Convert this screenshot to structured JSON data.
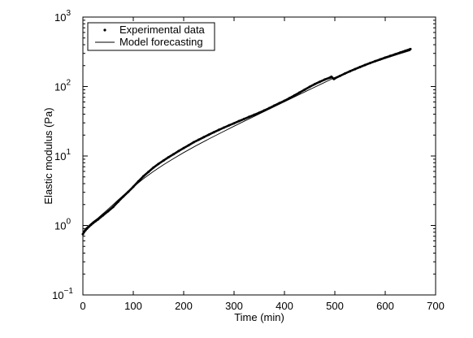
{
  "chart_data": {
    "type": "line",
    "title": "",
    "xlabel": "Time (min)",
    "ylabel": "Elastic modulus (Pa)",
    "xlim": [
      0,
      700
    ],
    "ylim": [
      0.1,
      1000
    ],
    "y_scale": "log",
    "grid": false,
    "legend_position": "top-left",
    "x_ticks": [
      0,
      100,
      200,
      300,
      400,
      500,
      600,
      700
    ],
    "x_tick_labels": [
      "0",
      "100",
      "200",
      "300",
      "400",
      "500",
      "600",
      "700"
    ],
    "y_ticks": [
      0.1,
      1,
      10,
      100,
      1000
    ],
    "y_tick_labels": [
      {
        "base": "10",
        "exp": "−1"
      },
      {
        "base": "10",
        "exp": "0"
      },
      {
        "base": "10",
        "exp": "1"
      },
      {
        "base": "10",
        "exp": "2"
      },
      {
        "base": "10",
        "exp": "3"
      }
    ],
    "series": [
      {
        "name": "Experimental data",
        "style": "dots",
        "color": "#000000",
        "x": [
          0,
          2,
          5,
          8,
          12,
          16,
          20,
          25,
          30,
          40,
          50,
          60,
          70,
          80,
          90,
          100,
          110,
          120,
          130,
          140,
          150,
          160,
          170,
          180,
          190,
          200,
          210,
          220,
          230,
          240,
          250,
          260,
          270,
          280,
          290,
          300,
          310,
          320,
          330,
          340,
          350,
          360,
          370,
          380,
          390,
          400,
          410,
          420,
          430,
          440,
          450,
          460,
          470,
          480,
          490,
          493,
          495,
          498,
          500,
          510,
          520,
          530,
          540,
          550,
          560,
          570,
          580,
          590,
          600,
          610,
          620,
          630,
          640,
          650
        ],
        "y": [
          0.75,
          0.8,
          0.85,
          0.9,
          0.96,
          1.02,
          1.08,
          1.15,
          1.22,
          1.4,
          1.6,
          1.85,
          2.2,
          2.6,
          3.05,
          3.6,
          4.3,
          5.1,
          5.9,
          6.8,
          7.7,
          8.6,
          9.6,
          10.6,
          11.8,
          13.0,
          14.3,
          15.8,
          17.2,
          18.7,
          20.3,
          22.0,
          23.8,
          25.7,
          27.6,
          29.6,
          31.8,
          34.1,
          36.6,
          39.2,
          42.0,
          45.3,
          49.0,
          53.2,
          57.8,
          62.5,
          68.0,
          74.5,
          82.0,
          90.0,
          99.0,
          108.0,
          117.0,
          126.0,
          134.0,
          138.0,
          134.0,
          128.0,
          131.0,
          142.0,
          154.0,
          166.0,
          178.0,
          191.0,
          204.0,
          218.0,
          232.0,
          246.0,
          261.0,
          276.0,
          292.0,
          309.0,
          327.0,
          346.0
        ]
      },
      {
        "name": "Model forecasting",
        "style": "line",
        "color": "#000000",
        "x": [
          0,
          5,
          10,
          20,
          30,
          40,
          50,
          60,
          70,
          80,
          90,
          100,
          120,
          140,
          160,
          180,
          200,
          225,
          250,
          275,
          300,
          325,
          350,
          375,
          400,
          425,
          450,
          475,
          500,
          525,
          550,
          575,
          600,
          625,
          650
        ],
        "y": [
          0.8,
          0.9,
          0.98,
          1.13,
          1.28,
          1.48,
          1.72,
          2.0,
          2.33,
          2.7,
          3.12,
          3.58,
          4.7,
          6.0,
          7.5,
          9.2,
          11.2,
          14.1,
          17.6,
          21.8,
          26.9,
          33.0,
          40.4,
          49.4,
          60.5,
          74.0,
          90.5,
          110.5,
          135.0,
          162.0,
          190.0,
          220.0,
          253.0,
          290.0,
          330.0
        ]
      }
    ]
  }
}
